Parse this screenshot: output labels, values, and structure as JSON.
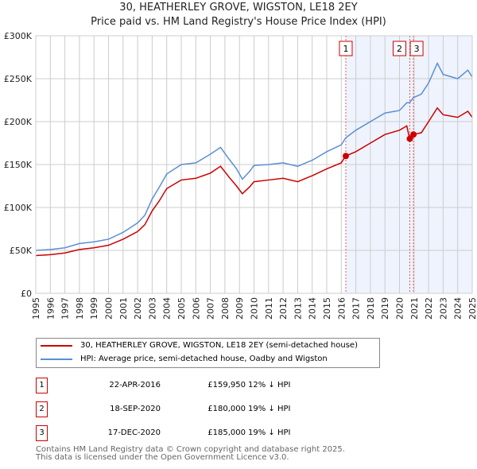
{
  "chart_data": {
    "type": "line",
    "title": "30, HEATHERLEY GROVE, WIGSTON, LE18 2EY",
    "subtitle": "Price paid vs. HM Land Registry's House Price Index (HPI)",
    "xlim": [
      1995,
      2025
    ],
    "ylim": [
      0,
      300000
    ],
    "y_ticks": [
      {
        "v": 0,
        "label": "£0"
      },
      {
        "v": 50000,
        "label": "£50K"
      },
      {
        "v": 100000,
        "label": "£100K"
      },
      {
        "v": 150000,
        "label": "£150K"
      },
      {
        "v": 200000,
        "label": "£200K"
      },
      {
        "v": 250000,
        "label": "£250K"
      },
      {
        "v": 300000,
        "label": "£300K"
      }
    ],
    "x_ticks": [
      "1995",
      "1996",
      "1997",
      "1998",
      "1999",
      "2000",
      "2001",
      "2002",
      "2003",
      "2004",
      "2005",
      "2006",
      "2007",
      "2008",
      "2009",
      "2010",
      "2011",
      "2012",
      "2013",
      "2014",
      "2015",
      "2016",
      "2017",
      "2018",
      "2019",
      "2020",
      "2021",
      "2022",
      "2023",
      "2024",
      "2025"
    ],
    "grid": true,
    "series": [
      {
        "name": "30, HEATHERLEY GROVE, WIGSTON, LE18 2EY (semi-detached house)",
        "color": "#cc0000",
        "x": [
          1995,
          1996,
          1997,
          1998,
          1999,
          2000,
          2001,
          2002,
          2002.5,
          2003,
          2003.5,
          2004,
          2005,
          2006,
          2007,
          2007.7,
          2008.3,
          2008.8,
          2009.2,
          2009.7,
          2010,
          2011,
          2012,
          2013,
          2014,
          2015,
          2016,
          2016.3,
          2017,
          2018,
          2019,
          2020,
          2020.5,
          2020.7,
          2020.96,
          2021.5,
          2022,
          2022.6,
          2023,
          2024,
          2024.7,
          2025
        ],
        "y": [
          44000,
          45000,
          47000,
          51000,
          53000,
          56000,
          63000,
          72000,
          80000,
          96000,
          108000,
          122000,
          132000,
          134000,
          140000,
          148000,
          135000,
          125000,
          116000,
          124000,
          130000,
          132000,
          134000,
          130000,
          137000,
          145000,
          152000,
          159950,
          165000,
          175000,
          185000,
          190000,
          195000,
          180000,
          185000,
          187000,
          200000,
          216000,
          208000,
          205000,
          212000,
          205000
        ]
      },
      {
        "name": "HPI: Average price, semi-detached house, Oadby and Wigston",
        "color": "#5b8fd4",
        "x": [
          1995,
          1996,
          1997,
          1998,
          1999,
          2000,
          2001,
          2002,
          2002.5,
          2003,
          2003.5,
          2004,
          2005,
          2006,
          2007,
          2007.7,
          2008.3,
          2008.8,
          2009.2,
          2009.7,
          2010,
          2011,
          2012,
          2013,
          2014,
          2015,
          2016,
          2016.3,
          2017,
          2018,
          2019,
          2020,
          2020.5,
          2020.7,
          2020.96,
          2021.5,
          2022,
          2022.6,
          2023,
          2024,
          2024.7,
          2025
        ],
        "y": [
          50000,
          51000,
          53000,
          58000,
          60000,
          63000,
          71000,
          82000,
          91000,
          110000,
          124000,
          139000,
          150000,
          152000,
          162000,
          170000,
          156000,
          145000,
          133000,
          142000,
          149000,
          150000,
          152000,
          148000,
          155000,
          165000,
          173000,
          181000,
          190000,
          200000,
          210000,
          213000,
          222000,
          222000,
          228000,
          232000,
          245000,
          268000,
          255000,
          250000,
          260000,
          252000
        ]
      }
    ],
    "sales": [
      {
        "id": "1",
        "x": 2016.31,
        "date": "22-APR-2016",
        "price": "£159,950",
        "value": 159950,
        "hpi": "12% ↓ HPI"
      },
      {
        "id": "2",
        "x": 2020.71,
        "date": "18-SEP-2020",
        "price": "£180,000",
        "value": 180000,
        "hpi": "19% ↓ HPI"
      },
      {
        "id": "3",
        "x": 2020.96,
        "date": "17-DEC-2020",
        "price": "£185,000",
        "value": 185000,
        "hpi": "19% ↓ HPI"
      }
    ]
  },
  "footer": [
    "Contains HM Land Registry data © Crown copyright and database right 2025.",
    "This data is licensed under the Open Government Licence v3.0."
  ]
}
